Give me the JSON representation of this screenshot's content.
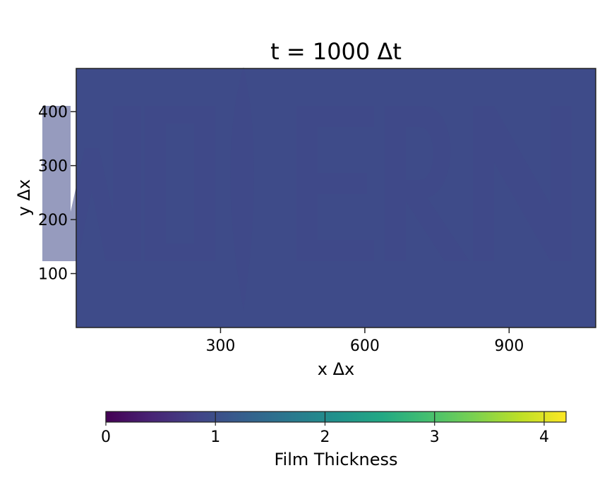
{
  "chart_data": {
    "type": "heatmap",
    "title": "t = 1000 Δt",
    "xlabel": "x Δx",
    "ylabel": "y Δx",
    "xlim": [
      0,
      1080
    ],
    "ylim": [
      0,
      480
    ],
    "x_ticks": [
      300,
      600,
      900
    ],
    "y_ticks": [
      100,
      200,
      300,
      400
    ],
    "grid": false,
    "field": {
      "description": "near-uniform film thickness with faint embossed text pattern",
      "background_value": 0.95,
      "pattern_value": 0.9,
      "pattern_text": "MOERN"
    },
    "colorbar": {
      "label": "Film Thickness",
      "colormap": "viridis",
      "range": [
        0,
        4.2
      ],
      "ticks": [
        0,
        1,
        2,
        3,
        4
      ],
      "orientation": "horizontal",
      "placement": "bottom"
    }
  }
}
